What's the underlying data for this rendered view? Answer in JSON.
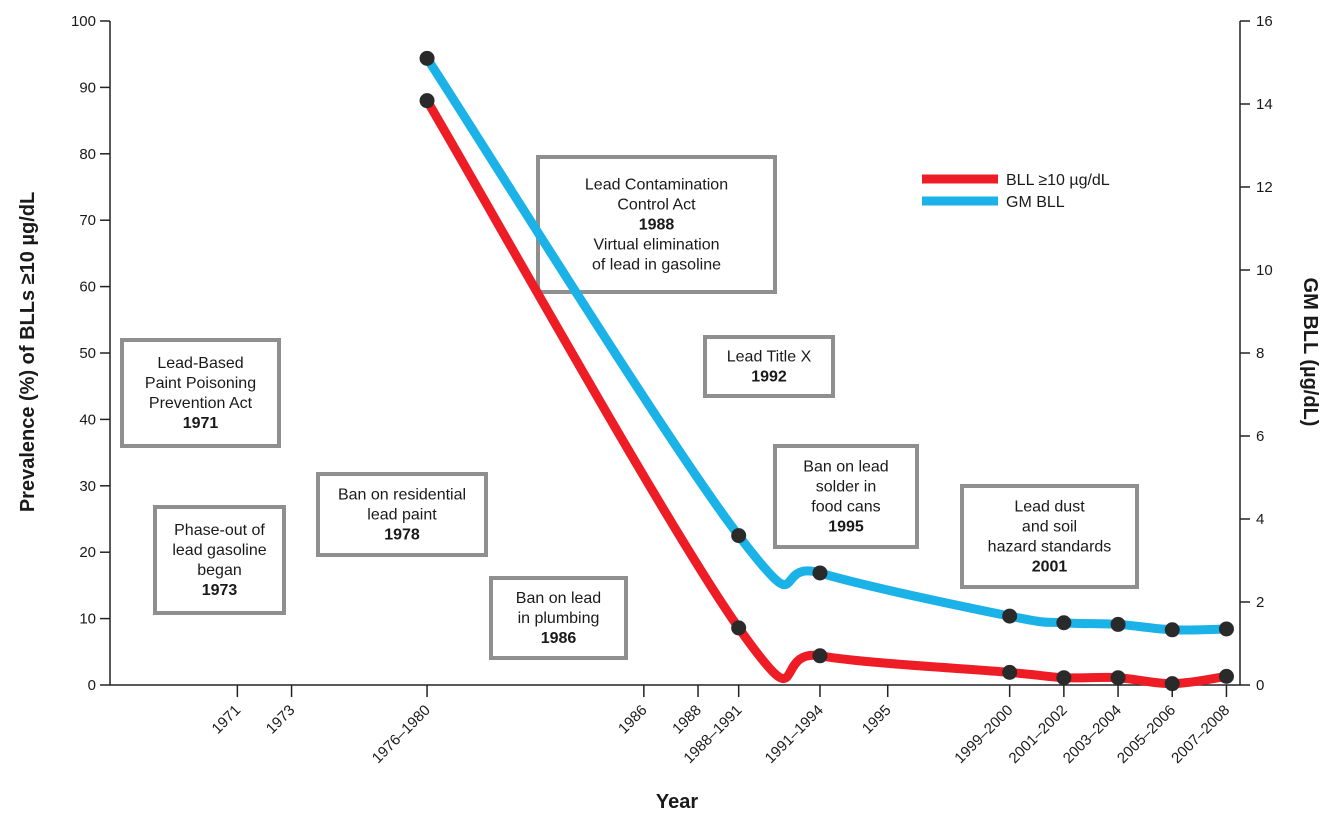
{
  "chart_data": {
    "type": "line",
    "xlabel": "Year",
    "ylabel_left": "Prevalence (%) of BLLs ≥10 µg/dL",
    "ylabel_right": "GM BLL (µg/dL)",
    "ylim_left": [
      0,
      100
    ],
    "ylim_right": [
      0,
      16
    ],
    "y_ticks_left": [
      "0",
      "10",
      "20",
      "30",
      "40",
      "50",
      "60",
      "70",
      "80",
      "90",
      "100"
    ],
    "y_ticks_right": [
      "0",
      "2",
      "4",
      "6",
      "8",
      "10",
      "12",
      "14",
      "16"
    ],
    "x_ticks": [
      "1971",
      "1973",
      "1976–1980",
      "1986",
      "1988",
      "1988–1991",
      "1991–1994",
      "1995",
      "1999–2000",
      "2001–2002",
      "2003–2004",
      "2005–2006",
      "2007–2008"
    ],
    "x_tick_years": [
      1971,
      1973,
      1978,
      1986,
      1988,
      1989.5,
      1992.5,
      1995,
      1999.5,
      2001.5,
      2003.5,
      2005.5,
      2007.5
    ],
    "series": [
      {
        "name": "BLL ≥10 µg/dL",
        "axis": "left",
        "color": "#ee1c25",
        "x": [
          "1976–1980",
          "1988–1991",
          "1991–1994",
          "1999–2000",
          "2001–2002",
          "2003–2004",
          "2005–2006",
          "2007–2008"
        ],
        "values": [
          88,
          8.6,
          4.4,
          1.9,
          1.1,
          1.1,
          0.2,
          1.3
        ]
      },
      {
        "name": "GM BLL",
        "axis": "right",
        "color": "#1bb2e8",
        "x": [
          "1976–1980",
          "1988–1991",
          "1991–1994",
          "1999–2000",
          "2001–2002",
          "2003–2004",
          "2005–2006",
          "2007–2008"
        ],
        "values": [
          15.1,
          3.6,
          2.7,
          1.66,
          1.5,
          1.46,
          1.33,
          1.35
        ]
      }
    ],
    "legend_position": "top-right",
    "grid": false,
    "annotations": [
      {
        "lines": [
          "Lead-Based",
          "Paint Poisoning",
          "Prevention Act"
        ],
        "year": "1971"
      },
      {
        "lines": [
          "Phase-out of",
          "lead gasoline",
          "began"
        ],
        "year": "1973"
      },
      {
        "lines": [
          "Ban on residential",
          "lead paint"
        ],
        "year": "1978"
      },
      {
        "lines": [
          "Ban on lead",
          "in plumbing"
        ],
        "year": "1986"
      },
      {
        "lines": [
          "Lead Contamination",
          "Control Act"
        ],
        "year": "1988",
        "lines_after": [
          "Virtual elimination",
          "of lead in gasoline"
        ]
      },
      {
        "lines": [
          "Lead Title X"
        ],
        "year": "1992"
      },
      {
        "lines": [
          "Ban on lead",
          "solder in",
          "food cans"
        ],
        "year": "1995"
      },
      {
        "lines": [
          "Lead dust",
          "and soil",
          "hazard standards"
        ],
        "year": "2001"
      }
    ]
  }
}
